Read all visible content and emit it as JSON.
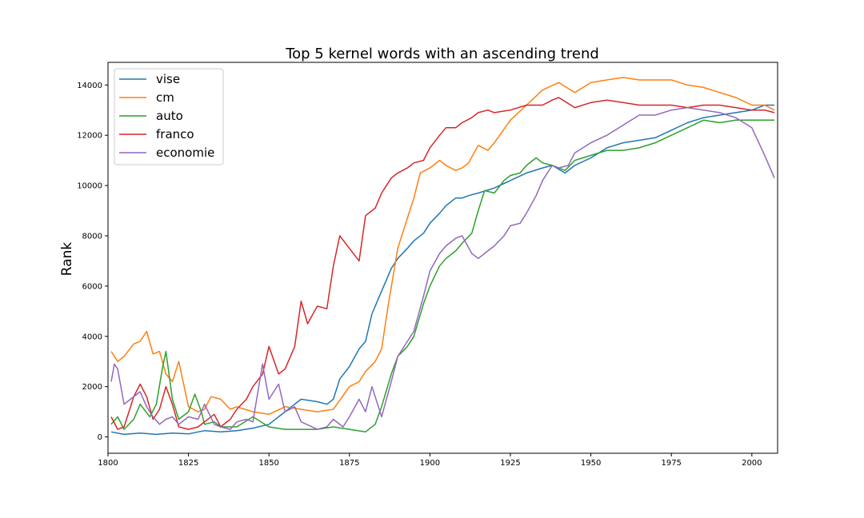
{
  "chart_data": {
    "type": "line",
    "title": "Top 5 kernel words with an ascending trend",
    "xlabel": "",
    "ylabel": "Rank",
    "xlim": [
      1800,
      2008
    ],
    "ylim": [
      -650,
      14900
    ],
    "xticks": [
      1800,
      1825,
      1850,
      1875,
      1900,
      1925,
      1950,
      1975,
      2000
    ],
    "yticks": [
      0,
      2000,
      4000,
      6000,
      8000,
      10000,
      12000,
      14000
    ],
    "legend_position": "top-left",
    "grid": false,
    "series": [
      {
        "name": "vise",
        "color": "#1f77b4",
        "x": [
          1801,
          1805,
          1810,
          1815,
          1820,
          1825,
          1830,
          1835,
          1840,
          1845,
          1850,
          1855,
          1860,
          1865,
          1868,
          1870,
          1872,
          1875,
          1878,
          1880,
          1882,
          1885,
          1888,
          1890,
          1893,
          1895,
          1898,
          1900,
          1903,
          1905,
          1908,
          1910,
          1912,
          1915,
          1920,
          1925,
          1930,
          1935,
          1938,
          1942,
          1945,
          1950,
          1955,
          1960,
          1965,
          1970,
          1975,
          1980,
          1985,
          1990,
          1995,
          2000,
          2004,
          2007
        ],
        "y": [
          200,
          100,
          150,
          100,
          150,
          120,
          250,
          200,
          250,
          350,
          500,
          1000,
          1500,
          1400,
          1300,
          1500,
          2300,
          2800,
          3500,
          3800,
          4900,
          5800,
          6700,
          7100,
          7500,
          7800,
          8100,
          8500,
          8900,
          9200,
          9500,
          9500,
          9600,
          9700,
          9900,
          10200,
          10500,
          10700,
          10800,
          10500,
          10800,
          11100,
          11500,
          11700,
          11800,
          11900,
          12200,
          12500,
          12700,
          12800,
          12900,
          13000,
          13200,
          13200
        ]
      },
      {
        "name": "cm",
        "color": "#ff7f0e",
        "x": [
          1801,
          1803,
          1805,
          1808,
          1810,
          1812,
          1814,
          1816,
          1818,
          1820,
          1822,
          1825,
          1828,
          1830,
          1832,
          1835,
          1838,
          1840,
          1845,
          1850,
          1855,
          1860,
          1865,
          1870,
          1875,
          1878,
          1880,
          1883,
          1885,
          1887,
          1890,
          1893,
          1895,
          1897,
          1900,
          1903,
          1905,
          1908,
          1910,
          1912,
          1915,
          1918,
          1920,
          1925,
          1930,
          1935,
          1940,
          1945,
          1950,
          1955,
          1960,
          1965,
          1970,
          1975,
          1980,
          1985,
          1990,
          1995,
          2000,
          2004,
          2007
        ],
        "y": [
          3400,
          3000,
          3200,
          3700,
          3800,
          4200,
          3300,
          3400,
          2500,
          2200,
          3000,
          1200,
          1000,
          1100,
          1600,
          1500,
          1100,
          1200,
          1000,
          900,
          1200,
          1100,
          1000,
          1100,
          2000,
          2200,
          2600,
          3000,
          3500,
          5200,
          7500,
          8700,
          9500,
          10500,
          10700,
          11000,
          10800,
          10600,
          10700,
          10900,
          11600,
          11400,
          11700,
          12600,
          13200,
          13800,
          14100,
          13700,
          14100,
          14200,
          14300,
          14200,
          14200,
          14200,
          14000,
          13900,
          13700,
          13500,
          13200,
          13200,
          13000
        ]
      },
      {
        "name": "auto",
        "color": "#2ca02c",
        "x": [
          1801,
          1803,
          1805,
          1808,
          1810,
          1813,
          1815,
          1817,
          1818,
          1820,
          1822,
          1825,
          1827,
          1829,
          1830,
          1833,
          1835,
          1840,
          1845,
          1850,
          1855,
          1860,
          1865,
          1870,
          1875,
          1880,
          1883,
          1885,
          1888,
          1890,
          1893,
          1895,
          1898,
          1900,
          1903,
          1905,
          1908,
          1910,
          1913,
          1915,
          1917,
          1920,
          1923,
          1925,
          1928,
          1930,
          1933,
          1935,
          1938,
          1942,
          1945,
          1950,
          1955,
          1960,
          1965,
          1970,
          1975,
          1980,
          1985,
          1990,
          1995,
          2000,
          2004,
          2007
        ],
        "y": [
          500,
          800,
          300,
          700,
          1300,
          800,
          1300,
          2800,
          3400,
          1500,
          700,
          1000,
          1700,
          1000,
          500,
          600,
          400,
          400,
          800,
          400,
          300,
          300,
          300,
          400,
          300,
          200,
          500,
          1200,
          2500,
          3200,
          3600,
          4000,
          5300,
          6000,
          6800,
          7100,
          7400,
          7700,
          8100,
          9000,
          9800,
          9700,
          10200,
          10400,
          10500,
          10800,
          11100,
          10900,
          10800,
          10600,
          11000,
          11200,
          11400,
          11400,
          11500,
          11700,
          12000,
          12300,
          12600,
          12500,
          12600,
          12600,
          12600,
          12600
        ]
      },
      {
        "name": "franco",
        "color": "#d62728",
        "x": [
          1801,
          1803,
          1805,
          1808,
          1810,
          1812,
          1814,
          1816,
          1818,
          1820,
          1822,
          1825,
          1828,
          1830,
          1833,
          1835,
          1838,
          1840,
          1843,
          1845,
          1848,
          1850,
          1853,
          1855,
          1858,
          1860,
          1862,
          1865,
          1868,
          1870,
          1872,
          1875,
          1878,
          1880,
          1883,
          1885,
          1888,
          1890,
          1893,
          1895,
          1898,
          1900,
          1903,
          1905,
          1908,
          1910,
          1913,
          1915,
          1918,
          1920,
          1925,
          1930,
          1935,
          1938,
          1940,
          1945,
          1950,
          1955,
          1960,
          1965,
          1970,
          1975,
          1980,
          1985,
          1990,
          1995,
          2000,
          2004,
          2007
        ],
        "y": [
          800,
          300,
          400,
          1600,
          2100,
          1600,
          700,
          1100,
          2000,
          1300,
          400,
          300,
          400,
          600,
          900,
          400,
          700,
          1100,
          1500,
          2000,
          2500,
          3600,
          2500,
          2700,
          3600,
          5400,
          4500,
          5200,
          5100,
          6800,
          8000,
          7500,
          7000,
          8800,
          9100,
          9700,
          10300,
          10500,
          10700,
          10900,
          11000,
          11500,
          12000,
          12300,
          12300,
          12500,
          12700,
          12900,
          13000,
          12900,
          13000,
          13200,
          13200,
          13400,
          13500,
          13100,
          13300,
          13400,
          13300,
          13200,
          13200,
          13200,
          13100,
          13200,
          13200,
          13100,
          13000,
          13000,
          12900
        ]
      },
      {
        "name": "economie",
        "color": "#9467bd",
        "x": [
          1801,
          1802,
          1803,
          1805,
          1807,
          1810,
          1812,
          1814,
          1816,
          1818,
          1820,
          1822,
          1825,
          1828,
          1830,
          1833,
          1835,
          1838,
          1840,
          1843,
          1845,
          1848,
          1850,
          1853,
          1855,
          1858,
          1860,
          1865,
          1868,
          1870,
          1873,
          1875,
          1878,
          1880,
          1882,
          1885,
          1888,
          1890,
          1893,
          1895,
          1898,
          1900,
          1903,
          1905,
          1908,
          1910,
          1913,
          1915,
          1918,
          1920,
          1923,
          1925,
          1928,
          1930,
          1933,
          1935,
          1938,
          1940,
          1943,
          1945,
          1950,
          1955,
          1960,
          1965,
          1970,
          1975,
          1980,
          1985,
          1990,
          1995,
          2000,
          2004,
          2007
        ],
        "y": [
          2200,
          2900,
          2700,
          1300,
          1500,
          1800,
          1200,
          800,
          500,
          700,
          800,
          500,
          800,
          700,
          1300,
          500,
          400,
          300,
          600,
          700,
          600,
          2900,
          1500,
          2100,
          1000,
          1200,
          600,
          300,
          400,
          700,
          400,
          800,
          1500,
          1000,
          2000,
          800,
          2200,
          3200,
          3800,
          4200,
          5600,
          6600,
          7300,
          7600,
          7900,
          8000,
          7300,
          7100,
          7400,
          7600,
          8000,
          8400,
          8500,
          8900,
          9600,
          10200,
          10800,
          10700,
          10800,
          11300,
          11700,
          12000,
          12400,
          12800,
          12800,
          13000,
          13100,
          13000,
          12900,
          12700,
          12300,
          11200,
          10300
        ]
      }
    ]
  }
}
